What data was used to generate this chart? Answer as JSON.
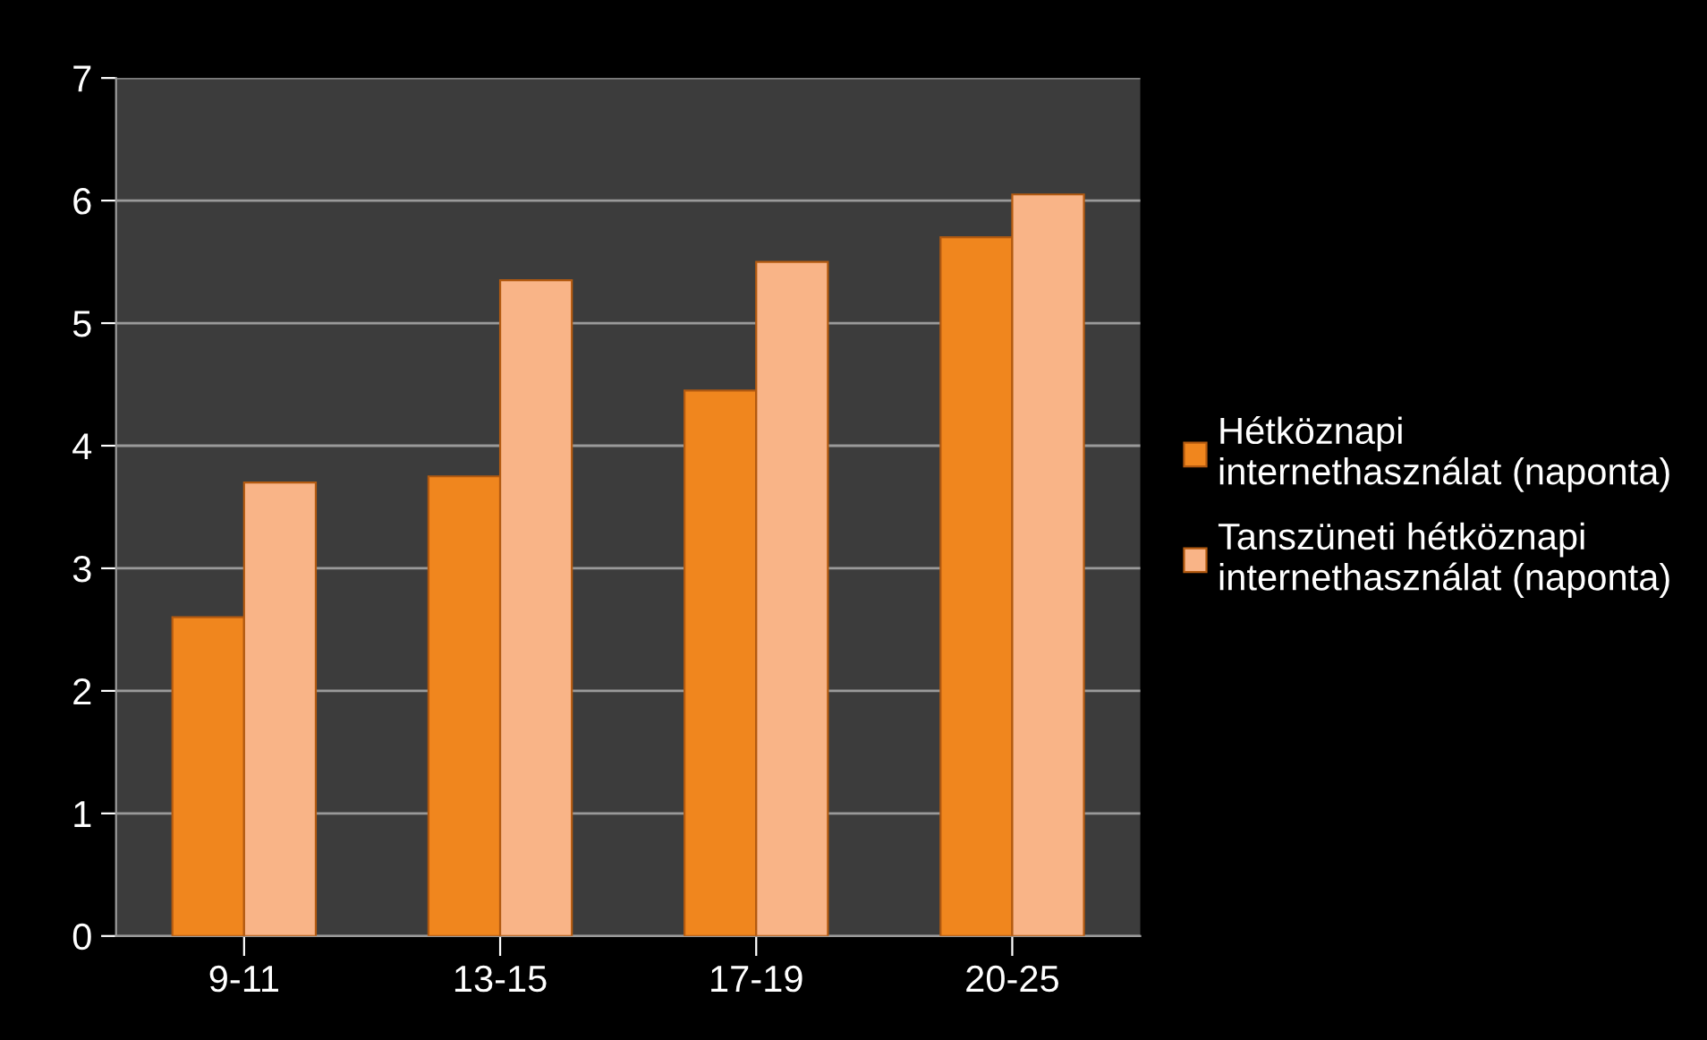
{
  "chart_data": {
    "type": "bar",
    "categories": [
      "9-11",
      "13-15",
      "17-19",
      "20-25"
    ],
    "series": [
      {
        "name": "Hétköznapi internethasználat (naponta)",
        "color": "#f0861e",
        "values": [
          2.6,
          3.75,
          4.45,
          5.7
        ]
      },
      {
        "name": "Tanszüneti hétköznapi internethasználat (naponta)",
        "color": "#f9b487",
        "values": [
          3.7,
          5.35,
          5.5,
          6.05
        ]
      }
    ],
    "ylim": [
      0,
      7
    ],
    "yticks": [
      0,
      1,
      2,
      3,
      4,
      5,
      6,
      7
    ],
    "grid": "y",
    "legend": "right"
  }
}
